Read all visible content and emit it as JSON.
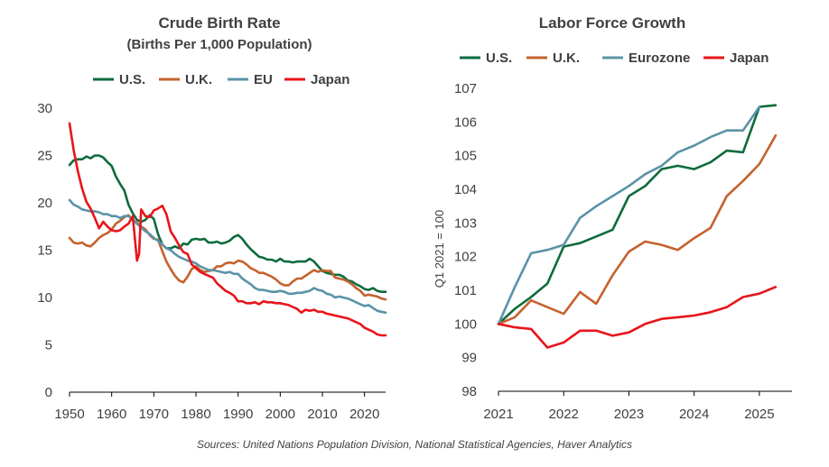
{
  "chart_data": [
    {
      "type": "line",
      "title": "Crude Birth Rate",
      "subtitle": "(Births Per 1,000 Population)",
      "xlabel": "",
      "ylabel": "",
      "xlim": [
        1950,
        2025
      ],
      "ylim": [
        0,
        30
      ],
      "xticks": [
        1950,
        1960,
        1970,
        1980,
        1990,
        2000,
        2010,
        2020
      ],
      "yticks": [
        0,
        5,
        10,
        15,
        20,
        25,
        30
      ],
      "legend_position": "top",
      "grid": false,
      "series": [
        {
          "name": "U.S.",
          "color": "#0E6B3C",
          "x": [
            1950,
            1951,
            1952,
            1953,
            1954,
            1955,
            1956,
            1957,
            1958,
            1959,
            1960,
            1961,
            1962,
            1963,
            1964,
            1965,
            1966,
            1967,
            1968,
            1969,
            1970,
            1971,
            1972,
            1973,
            1974,
            1975,
            1976,
            1977,
            1978,
            1979,
            1980,
            1981,
            1982,
            1983,
            1984,
            1985,
            1986,
            1987,
            1988,
            1989,
            1990,
            1991,
            1992,
            1993,
            1994,
            1995,
            1996,
            1997,
            1998,
            1999,
            2000,
            2001,
            2002,
            2003,
            2004,
            2005,
            2006,
            2007,
            2008,
            2009,
            2010,
            2011,
            2012,
            2013,
            2014,
            2015,
            2016,
            2017,
            2018,
            2019,
            2020,
            2021,
            2022,
            2023,
            2024,
            2025
          ],
          "y": [
            24.0,
            24.5,
            24.6,
            24.6,
            24.9,
            24.7,
            25.0,
            25.0,
            24.8,
            24.3,
            23.9,
            22.8,
            22.0,
            21.3,
            19.8,
            18.9,
            18.2,
            18.0,
            18.2,
            18.7,
            18.3,
            16.7,
            15.6,
            15.2,
            15.2,
            15.4,
            15.2,
            15.7,
            15.6,
            16.1,
            16.2,
            16.1,
            16.2,
            15.8,
            15.8,
            15.9,
            15.7,
            15.8,
            16.0,
            16.4,
            16.6,
            16.2,
            15.6,
            15.1,
            14.7,
            14.3,
            14.2,
            14.0,
            14.0,
            13.8,
            14.1,
            13.8,
            13.8,
            13.7,
            13.8,
            13.8,
            13.8,
            14.1,
            13.8,
            13.3,
            12.8,
            12.6,
            12.5,
            12.4,
            12.4,
            12.2,
            11.8,
            11.7,
            11.4,
            11.2,
            10.9,
            10.8,
            11.0,
            10.7,
            10.6,
            10.6
          ]
        },
        {
          "name": "U.K.",
          "color": "#C5622E",
          "x": [
            1950,
            1951,
            1952,
            1953,
            1954,
            1955,
            1956,
            1957,
            1958,
            1959,
            1960,
            1961,
            1962,
            1963,
            1964,
            1965,
            1966,
            1967,
            1968,
            1969,
            1970,
            1971,
            1972,
            1973,
            1974,
            1975,
            1976,
            1977,
            1978,
            1979,
            1980,
            1981,
            1982,
            1983,
            1984,
            1985,
            1986,
            1987,
            1988,
            1989,
            1990,
            1991,
            1992,
            1993,
            1994,
            1995,
            1996,
            1997,
            1998,
            1999,
            2000,
            2001,
            2002,
            2003,
            2004,
            2005,
            2006,
            2007,
            2008,
            2009,
            2010,
            2011,
            2012,
            2013,
            2014,
            2015,
            2016,
            2017,
            2018,
            2019,
            2020,
            2021,
            2022,
            2023,
            2024,
            2025
          ],
          "y": [
            16.3,
            15.8,
            15.7,
            15.8,
            15.5,
            15.4,
            15.8,
            16.3,
            16.6,
            16.8,
            17.2,
            17.8,
            18.1,
            18.5,
            18.7,
            18.2,
            17.9,
            17.5,
            17.2,
            16.6,
            16.2,
            16.1,
            14.9,
            13.8,
            13.0,
            12.3,
            11.8,
            11.6,
            12.2,
            13.0,
            13.3,
            12.9,
            12.7,
            12.8,
            12.9,
            13.3,
            13.3,
            13.6,
            13.7,
            13.6,
            13.9,
            13.8,
            13.5,
            13.1,
            12.9,
            12.6,
            12.6,
            12.4,
            12.2,
            11.9,
            11.5,
            11.3,
            11.3,
            11.7,
            12.0,
            12.0,
            12.3,
            12.6,
            12.9,
            12.7,
            12.9,
            12.8,
            12.8,
            12.1,
            12.0,
            11.9,
            11.7,
            11.4,
            11.0,
            10.7,
            10.2,
            10.3,
            10.2,
            10.1,
            9.9,
            9.8
          ]
        },
        {
          "name": "EU",
          "color": "#5A93A8",
          "x": [
            1950,
            1951,
            1952,
            1953,
            1954,
            1955,
            1956,
            1957,
            1958,
            1959,
            1960,
            1961,
            1962,
            1963,
            1964,
            1965,
            1966,
            1967,
            1968,
            1969,
            1970,
            1971,
            1972,
            1973,
            1974,
            1975,
            1976,
            1977,
            1978,
            1979,
            1980,
            1981,
            1982,
            1983,
            1984,
            1985,
            1986,
            1987,
            1988,
            1989,
            1990,
            1991,
            1992,
            1993,
            1994,
            1995,
            1996,
            1997,
            1998,
            1999,
            2000,
            2001,
            2002,
            2003,
            2004,
            2005,
            2006,
            2007,
            2008,
            2009,
            2010,
            2011,
            2012,
            2013,
            2014,
            2015,
            2016,
            2017,
            2018,
            2019,
            2020,
            2021,
            2022,
            2023,
            2024,
            2025
          ],
          "y": [
            20.3,
            19.8,
            19.6,
            19.3,
            19.2,
            19.1,
            19.1,
            19.0,
            18.8,
            18.8,
            18.6,
            18.6,
            18.4,
            18.6,
            18.6,
            18.2,
            17.8,
            17.4,
            17.0,
            16.7,
            16.3,
            16.0,
            15.6,
            15.2,
            15.0,
            14.6,
            14.3,
            14.1,
            13.9,
            13.8,
            13.6,
            13.3,
            13.1,
            12.9,
            12.9,
            12.8,
            12.7,
            12.6,
            12.7,
            12.5,
            12.5,
            12.0,
            11.7,
            11.4,
            11.0,
            10.8,
            10.8,
            10.7,
            10.6,
            10.6,
            10.7,
            10.6,
            10.4,
            10.4,
            10.5,
            10.5,
            10.6,
            10.7,
            11.0,
            10.8,
            10.7,
            10.4,
            10.3,
            10.0,
            10.1,
            10.0,
            9.9,
            9.7,
            9.5,
            9.3,
            9.1,
            9.2,
            8.9,
            8.6,
            8.5,
            8.4
          ]
        },
        {
          "name": "Japan",
          "color": "#E8151B",
          "x": [
            1950,
            1951,
            1952,
            1953,
            1954,
            1955,
            1956,
            1957,
            1958,
            1959,
            1960,
            1961,
            1962,
            1963,
            1964,
            1965,
            1966,
            1966.5,
            1967,
            1968,
            1969,
            1970,
            1971,
            1972,
            1973,
            1974,
            1975,
            1976,
            1977,
            1978,
            1979,
            1980,
            1981,
            1982,
            1983,
            1984,
            1985,
            1986,
            1987,
            1988,
            1989,
            1990,
            1991,
            1992,
            1993,
            1994,
            1995,
            1996,
            1997,
            1998,
            1999,
            2000,
            2001,
            2002,
            2003,
            2004,
            2005,
            2006,
            2007,
            2008,
            2009,
            2010,
            2011,
            2012,
            2013,
            2014,
            2015,
            2016,
            2017,
            2018,
            2019,
            2020,
            2021,
            2022,
            2023,
            2024,
            2025
          ],
          "y": [
            28.4,
            25.5,
            23.3,
            21.5,
            20.1,
            19.4,
            18.4,
            17.3,
            18.0,
            17.5,
            17.1,
            17.0,
            17.1,
            17.5,
            17.8,
            18.6,
            13.9,
            14.6,
            19.3,
            18.6,
            18.5,
            19.2,
            19.4,
            19.7,
            18.8,
            17.0,
            16.3,
            15.5,
            14.8,
            14.6,
            13.5,
            13.1,
            12.7,
            12.5,
            12.3,
            12.1,
            11.5,
            11.1,
            10.7,
            10.5,
            10.2,
            9.6,
            9.6,
            9.4,
            9.4,
            9.5,
            9.3,
            9.6,
            9.5,
            9.5,
            9.4,
            9.4,
            9.3,
            9.2,
            9.0,
            8.8,
            8.4,
            8.7,
            8.6,
            8.7,
            8.5,
            8.5,
            8.3,
            8.2,
            8.1,
            8.0,
            7.9,
            7.8,
            7.6,
            7.4,
            7.2,
            6.8,
            6.6,
            6.4,
            6.1,
            6.0,
            6.0
          ]
        }
      ]
    },
    {
      "type": "line",
      "title": "Labor Force Growth",
      "xlabel": "",
      "ylabel": "Q1 2021 = 100",
      "xlim": [
        2021,
        2025.5
      ],
      "ylim": [
        98,
        107
      ],
      "xticks": [
        2021,
        2022,
        2023,
        2024,
        2025
      ],
      "yticks": [
        98,
        99,
        100,
        101,
        102,
        103,
        104,
        105,
        106,
        107
      ],
      "legend_position": "top",
      "grid": false,
      "series": [
        {
          "name": "U.S.",
          "color": "#0E6B3C",
          "x": [
            2021.0,
            2021.25,
            2021.5,
            2021.75,
            2022.0,
            2022.25,
            2022.5,
            2022.75,
            2023.0,
            2023.25,
            2023.5,
            2023.75,
            2024.0,
            2024.25,
            2024.5,
            2024.75,
            2025.0,
            2025.25
          ],
          "y": [
            100.0,
            100.45,
            100.8,
            101.2,
            102.3,
            102.4,
            102.6,
            102.8,
            103.8,
            104.1,
            104.6,
            104.7,
            104.6,
            104.8,
            105.15,
            105.1,
            106.45,
            106.5
          ]
        },
        {
          "name": "U.K.",
          "color": "#C5622E",
          "x": [
            2021.0,
            2021.25,
            2021.5,
            2021.75,
            2022.0,
            2022.25,
            2022.5,
            2022.75,
            2023.0,
            2023.25,
            2023.5,
            2023.75,
            2024.0,
            2024.25,
            2024.5,
            2024.75,
            2025.0,
            2025.25
          ],
          "y": [
            100.0,
            100.2,
            100.7,
            100.5,
            100.3,
            100.95,
            100.6,
            101.45,
            102.15,
            102.45,
            102.35,
            102.2,
            102.55,
            102.85,
            103.8,
            104.25,
            104.75,
            105.6
          ]
        },
        {
          "name": "Eurozone",
          "color": "#5A93A8",
          "x": [
            2021.0,
            2021.25,
            2021.5,
            2021.75,
            2022.0,
            2022.25,
            2022.5,
            2022.75,
            2023.0,
            2023.25,
            2023.5,
            2023.75,
            2024.0,
            2024.25,
            2024.5,
            2024.75,
            2025.0
          ],
          "y": [
            100.0,
            101.1,
            102.1,
            102.2,
            102.35,
            103.15,
            103.5,
            103.8,
            104.1,
            104.45,
            104.7,
            105.1,
            105.3,
            105.55,
            105.75,
            105.75,
            106.45
          ]
        },
        {
          "name": "Japan",
          "color": "#E8151B",
          "x": [
            2021.0,
            2021.25,
            2021.5,
            2021.75,
            2022.0,
            2022.25,
            2022.5,
            2022.75,
            2023.0,
            2023.25,
            2023.5,
            2023.75,
            2024.0,
            2024.25,
            2024.5,
            2024.75,
            2025.0,
            2025.25
          ],
          "y": [
            100.0,
            99.9,
            99.85,
            99.3,
            99.45,
            99.8,
            99.8,
            99.65,
            99.75,
            100.0,
            100.15,
            100.2,
            100.25,
            100.35,
            100.5,
            100.8,
            100.9,
            101.1
          ]
        }
      ]
    }
  ],
  "source": "Sources: United Nations Population Division, National Statistical Agencies, Haver Analytics"
}
